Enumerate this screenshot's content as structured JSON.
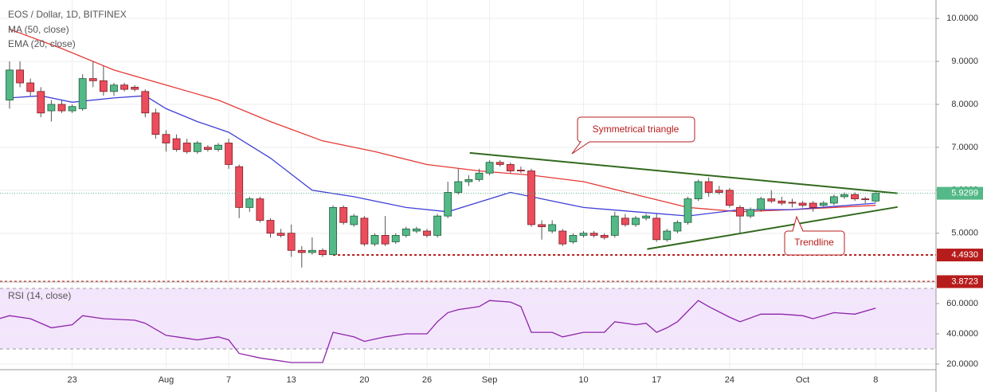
{
  "chart_data": [
    {
      "type": "candlestick",
      "title": "EOS / Dollar, 1D, BITFINEX",
      "categories": [
        null,
        null,
        null,
        null,
        null,
        null,
        "23",
        null,
        null,
        null,
        null,
        null,
        null,
        null,
        null,
        "Aug",
        null,
        null,
        null,
        null,
        null,
        "7",
        null,
        null,
        null,
        null,
        null,
        "13",
        null,
        null,
        null,
        null,
        null,
        null,
        "20",
        null,
        null,
        null,
        null,
        null,
        "26",
        null,
        null,
        null,
        null,
        null,
        "Sep",
        null,
        null,
        null,
        null,
        null,
        null,
        null,
        null,
        "10",
        null,
        null,
        null,
        null,
        null,
        null,
        "17",
        null,
        null,
        null,
        null,
        null,
        null,
        "24",
        null,
        null,
        null,
        null,
        null,
        null,
        "Oct",
        null,
        null,
        null,
        null,
        null,
        null,
        "8"
      ],
      "open": [
        8.1,
        8.8,
        8.5,
        8.3,
        7.85,
        8.0,
        7.85,
        7.9,
        8.6,
        8.55,
        8.3,
        8.45,
        8.4,
        8.3,
        7.8,
        7.3,
        7.2,
        7.1,
        6.9,
        7.0,
        6.95,
        7.1,
        6.55,
        5.6,
        5.8,
        5.3,
        5.0,
        5.0,
        4.6,
        4.55,
        4.6,
        4.5,
        5.6,
        5.2,
        5.35,
        4.75,
        4.95,
        4.8,
        4.95,
        5.05,
        5.05,
        4.95,
        5.4,
        5.95,
        6.2,
        6.25,
        6.4,
        6.65,
        6.6,
        6.47,
        6.45,
        5.2,
        5.05,
        5.05,
        4.8,
        4.95,
        5.0,
        4.95,
        4.95,
        5.35,
        5.2,
        5.35,
        5.35,
        4.85,
        5.05,
        5.25,
        5.8,
        6.2,
        6.0,
        6.0,
        5.6,
        5.4,
        5.55,
        5.8,
        5.75,
        5.72,
        5.7,
        5.7,
        5.65,
        5.7,
        5.85,
        5.9,
        5.8,
        5.75
      ],
      "high": [
        9.0,
        9.0,
        8.6,
        8.4,
        8.1,
        8.1,
        8.0,
        8.7,
        9.0,
        8.9,
        8.5,
        8.5,
        8.45,
        8.35,
        7.9,
        7.4,
        7.3,
        7.2,
        7.15,
        7.05,
        7.1,
        7.2,
        6.6,
        5.85,
        5.85,
        5.35,
        5.1,
        5.2,
        4.7,
        4.9,
        4.65,
        5.65,
        5.65,
        5.45,
        5.4,
        5.0,
        5.4,
        5.0,
        5.15,
        5.15,
        5.1,
        5.45,
        6.2,
        6.5,
        6.35,
        6.5,
        6.7,
        6.7,
        6.65,
        6.55,
        6.5,
        5.3,
        5.3,
        5.1,
        5.0,
        5.05,
        5.05,
        5.0,
        5.5,
        5.45,
        5.4,
        5.45,
        5.45,
        5.1,
        5.3,
        5.85,
        6.25,
        6.3,
        6.1,
        6.05,
        5.65,
        5.6,
        5.85,
        6.0,
        5.85,
        5.8,
        5.75,
        5.75,
        5.75,
        5.9,
        5.95,
        5.95,
        5.85,
        5.95
      ],
      "low": [
        7.9,
        8.4,
        8.2,
        7.7,
        7.6,
        7.8,
        7.8,
        7.85,
        8.4,
        8.2,
        8.2,
        8.3,
        8.3,
        7.7,
        7.2,
        6.9,
        6.9,
        6.85,
        6.85,
        6.9,
        6.9,
        6.5,
        5.35,
        5.5,
        5.25,
        4.9,
        4.9,
        4.45,
        4.2,
        4.5,
        4.45,
        4.5,
        5.2,
        5.15,
        4.7,
        4.7,
        4.7,
        4.75,
        4.9,
        5.0,
        4.9,
        4.9,
        5.35,
        5.9,
        6.1,
        6.2,
        6.35,
        6.55,
        6.4,
        6.4,
        5.15,
        4.85,
        5.0,
        4.7,
        4.75,
        4.9,
        4.9,
        4.85,
        4.9,
        5.15,
        5.15,
        5.3,
        4.8,
        4.8,
        5.0,
        5.2,
        5.75,
        5.85,
        5.9,
        5.6,
        5.0,
        5.35,
        5.5,
        5.7,
        5.65,
        5.6,
        5.6,
        5.5,
        5.6,
        5.65,
        5.8,
        5.75,
        5.7,
        5.72
      ],
      "close": [
        8.8,
        8.5,
        8.3,
        7.8,
        8.0,
        7.85,
        7.95,
        8.6,
        8.55,
        8.3,
        8.45,
        8.35,
        8.35,
        7.8,
        7.3,
        7.1,
        6.95,
        6.9,
        7.1,
        6.95,
        7.05,
        6.6,
        5.6,
        5.8,
        5.3,
        5.0,
        4.95,
        4.6,
        4.55,
        4.6,
        4.5,
        5.6,
        5.25,
        5.4,
        4.75,
        4.95,
        4.75,
        4.95,
        5.1,
        5.1,
        4.95,
        5.4,
        5.95,
        6.2,
        6.25,
        6.4,
        6.65,
        6.6,
        6.45,
        6.45,
        5.2,
        5.15,
        5.2,
        4.75,
        4.95,
        5.0,
        4.95,
        4.9,
        5.4,
        5.2,
        5.35,
        5.4,
        4.85,
        5.05,
        5.25,
        5.8,
        6.2,
        5.95,
        5.95,
        5.65,
        5.4,
        5.55,
        5.8,
        5.75,
        5.7,
        5.7,
        5.65,
        5.6,
        5.7,
        5.85,
        5.9,
        5.8,
        5.78,
        5.93
      ],
      "up_color": "#53b987",
      "down_color": "#eb4d5c",
      "series": [
        {
          "name": "MA (50, close)",
          "color": "#e53935",
          "x": [
            0,
            5,
            10,
            15,
            20,
            25,
            30,
            35,
            40,
            45,
            50,
            55,
            60,
            65,
            70,
            75,
            83
          ],
          "values": [
            9.75,
            9.3,
            8.8,
            8.45,
            8.1,
            7.6,
            7.15,
            6.9,
            6.6,
            6.45,
            6.35,
            6.2,
            5.9,
            5.6,
            5.5,
            5.55,
            5.65
          ]
        },
        {
          "name": "EMA (20, close)",
          "color": "#3f3fd8",
          "x": [
            0,
            3,
            6,
            10,
            13,
            15,
            18,
            21,
            25,
            29,
            33,
            38,
            42,
            46,
            48,
            50,
            55,
            60,
            65,
            70,
            75,
            83
          ],
          "values": [
            8.15,
            8.2,
            8.05,
            8.15,
            8.2,
            7.9,
            7.6,
            7.35,
            6.75,
            6.0,
            5.85,
            5.6,
            5.5,
            5.8,
            5.95,
            5.85,
            5.6,
            5.5,
            5.4,
            5.55,
            5.55,
            5.7
          ]
        }
      ],
      "trendlines": [
        {
          "color": "#33691e",
          "x": [
            44.1,
            85.1
          ],
          "values": [
            6.87,
            5.93
          ]
        },
        {
          "color": "#33691e",
          "x": [
            61.1,
            85.1
          ],
          "values": [
            4.63,
            5.61
          ]
        }
      ],
      "annotations": [
        "Symmetrical triangle",
        "Trendline"
      ],
      "hlines": [
        {
          "value": 4.493,
          "label": "4.4930",
          "color": "#b71c1c",
          "x": 31
        },
        {
          "value": 3.8723,
          "color": "#b71c1c",
          "x": -1
        }
      ],
      "last": 5.9299,
      "last_color": "#53b987",
      "ylim": [
        3.9,
        10.43
      ],
      "yticks": [
        {
          "value": 10,
          "label": "10.0000"
        },
        {
          "value": 9,
          "label": "9.0000"
        },
        {
          "value": 8,
          "label": "8.0000"
        },
        {
          "value": 7,
          "label": "7.0000"
        },
        {
          "value": 6,
          "label": "6.0000"
        },
        {
          "value": 5,
          "label": "5.0000"
        }
      ]
    },
    {
      "type": "line",
      "title": "RSI (14, close)",
      "series": [
        {
          "name": "RSI (14, close)",
          "color": "#8e24aa",
          "x": [
            -1,
            0,
            2,
            4,
            6,
            7,
            9,
            12,
            13,
            15,
            17,
            18,
            20,
            21,
            22,
            24,
            25,
            27,
            29,
            30,
            31,
            33,
            34,
            36,
            38,
            40,
            41,
            42,
            43,
            45,
            46,
            48,
            49,
            50,
            52,
            53,
            55,
            57,
            58,
            60,
            61,
            62,
            63,
            64,
            65,
            66,
            67,
            69,
            70,
            72,
            74,
            76,
            77,
            79,
            81,
            83
          ],
          "values": [
            50,
            52,
            50,
            44,
            46,
            52,
            50,
            49,
            47,
            39,
            37,
            36,
            38,
            36,
            27,
            24,
            23,
            21,
            21,
            21,
            41,
            38,
            35,
            38,
            40,
            40,
            48,
            54,
            56,
            58,
            62,
            61,
            58,
            41,
            41,
            38,
            41,
            41,
            48,
            46,
            47,
            41,
            44,
            48,
            55,
            62,
            58,
            51,
            48,
            53,
            53,
            52,
            50,
            54,
            53,
            57
          ]
        }
      ],
      "levels": [
        30,
        70
      ],
      "band_color": "#f3e5fc",
      "ylim": [
        16.8,
        73.7
      ],
      "yticks": [
        {
          "value": 60,
          "label": "60.0000"
        },
        {
          "value": 40,
          "label": "40.0000"
        },
        {
          "value": 20,
          "label": "20.0000"
        }
      ]
    }
  ]
}
